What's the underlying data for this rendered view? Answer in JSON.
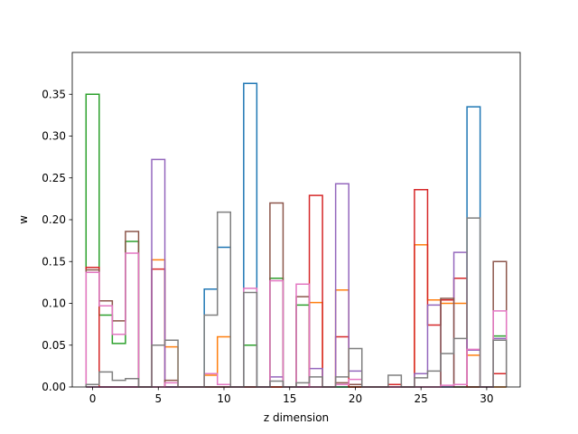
{
  "chart_data": {
    "type": "step",
    "xlabel": "z dimension",
    "ylabel": "w",
    "xlim": [
      -1.55,
      32.55
    ],
    "ylim": [
      0,
      0.4
    ],
    "xticks": [
      0,
      5,
      10,
      15,
      20,
      25,
      30
    ],
    "xtick_labels": [
      "0",
      "5",
      "10",
      "15",
      "20",
      "25",
      "30"
    ],
    "yticks": [
      0,
      0.05,
      0.1,
      0.15,
      0.2,
      0.25,
      0.3,
      0.35
    ],
    "ytick_labels": [
      "0.00",
      "0.05",
      "0.10",
      "0.15",
      "0.20",
      "0.25",
      "0.30",
      "0.35"
    ],
    "grid": false,
    "bin_edges": [
      -0.5,
      0.5,
      1.5,
      2.5,
      3.5,
      4.5,
      5.5,
      6.5,
      7.5,
      8.5,
      9.5,
      10.5,
      11.5,
      12.5,
      13.5,
      14.5,
      15.5,
      16.5,
      17.5,
      18.5,
      19.5,
      20.5,
      21.5,
      22.5,
      23.5,
      24.5,
      25.5,
      26.5,
      27.5,
      28.5,
      29.5,
      30.5,
      31.5
    ],
    "series": [
      {
        "color": "#1f77b4",
        "values": [
          0,
          0,
          0,
          0,
          0,
          0,
          0,
          0,
          0,
          0.117,
          0.167,
          0,
          0.363,
          0,
          0,
          0,
          0,
          0,
          0,
          0,
          0,
          0,
          0,
          0,
          0,
          0,
          0,
          0,
          0,
          0.335,
          0,
          0
        ]
      },
      {
        "color": "#ff7f0e",
        "values": [
          0,
          0,
          0,
          0,
          0,
          0.152,
          0.048,
          0,
          0,
          0.014,
          0.06,
          0,
          0,
          0,
          0,
          0,
          0,
          0.101,
          0,
          0.116,
          0,
          0,
          0,
          0,
          0,
          0.17,
          0.104,
          0.1,
          0.1,
          0.038,
          0,
          0
        ]
      },
      {
        "color": "#2ca02c",
        "values": [
          0.35,
          0.086,
          0.052,
          0.174,
          0,
          0,
          0,
          0,
          0,
          0,
          0,
          0,
          0.05,
          0,
          0.13,
          0,
          0.098,
          0,
          0,
          0,
          0,
          0,
          0,
          0,
          0,
          0,
          0,
          0,
          0,
          0,
          0,
          0.061
        ]
      },
      {
        "color": "#d62728",
        "values": [
          0.143,
          0,
          0,
          0,
          0,
          0.141,
          0,
          0,
          0,
          0,
          0,
          0,
          0,
          0,
          0,
          0,
          0,
          0.229,
          0,
          0.06,
          0,
          0,
          0,
          0.003,
          0,
          0.236,
          0.074,
          0.104,
          0.13,
          0,
          0,
          0.016
        ]
      },
      {
        "color": "#9467bd",
        "values": [
          0,
          0,
          0,
          0,
          0,
          0.272,
          0,
          0,
          0,
          0,
          0,
          0,
          0,
          0,
          0.012,
          0,
          0,
          0.022,
          0,
          0.243,
          0.019,
          0,
          0,
          0,
          0,
          0.016,
          0.098,
          0,
          0.161,
          0.044,
          0,
          0.058
        ]
      },
      {
        "color": "#8c564b",
        "values": [
          0.14,
          0.103,
          0.079,
          0.186,
          0,
          0,
          0.008,
          0,
          0,
          0,
          0,
          0,
          0,
          0,
          0.22,
          0,
          0.108,
          0,
          0,
          0.005,
          0.003,
          0,
          0,
          0,
          0,
          0,
          0,
          0.106,
          0,
          0,
          0,
          0.15
        ]
      },
      {
        "color": "#e377c2",
        "values": [
          0.137,
          0.097,
          0.063,
          0.16,
          0,
          0,
          0.005,
          0,
          0,
          0.016,
          0.003,
          0,
          0.118,
          0,
          0.127,
          0,
          0.123,
          0,
          0,
          0.003,
          0.009,
          0,
          0,
          0,
          0,
          0,
          0,
          0.002,
          0.003,
          0.045,
          0,
          0.091
        ]
      },
      {
        "color": "#7f7f7f",
        "values": [
          0.003,
          0.018,
          0.008,
          0.01,
          0,
          0.05,
          0.056,
          0,
          0,
          0.086,
          0.209,
          0,
          0.113,
          0,
          0.007,
          0,
          0.005,
          0.012,
          0,
          0.012,
          0.046,
          0,
          0,
          0.014,
          0,
          0.011,
          0.019,
          0.04,
          0.058,
          0.202,
          0,
          0.056
        ]
      }
    ]
  }
}
